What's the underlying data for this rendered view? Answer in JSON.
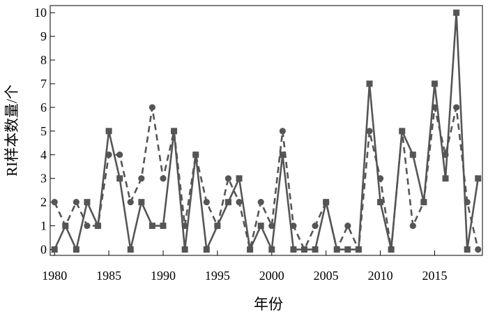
{
  "chart_data": {
    "type": "line",
    "xlabel": "年份",
    "ylabel": "RI样本数量/个",
    "xlim": [
      1979.6,
      2019.4
    ],
    "ylim": [
      -0.25,
      10.3
    ],
    "x_ticks": [
      1980,
      1985,
      1990,
      1995,
      2000,
      2005,
      2010,
      2015
    ],
    "y_ticks": [
      0,
      1,
      2,
      3,
      4,
      5,
      6,
      7,
      8,
      9,
      10
    ],
    "grid": false,
    "legend": "none",
    "x": [
      1980,
      1981,
      1982,
      1983,
      1984,
      1985,
      1986,
      1987,
      1988,
      1989,
      1990,
      1991,
      1992,
      1993,
      1994,
      1995,
      1996,
      1997,
      1998,
      1999,
      2000,
      2001,
      2002,
      2003,
      2004,
      2005,
      2006,
      2007,
      2008,
      2009,
      2010,
      2011,
      2012,
      2013,
      2014,
      2015,
      2016,
      2017,
      2018,
      2019
    ],
    "series": [
      {
        "style": "solid",
        "marker": "square",
        "color": "#555555",
        "values": [
          0,
          1,
          0,
          2,
          1,
          5,
          3,
          0,
          2,
          1,
          1,
          5,
          0,
          4,
          0,
          1,
          2,
          3,
          0,
          1,
          0,
          4,
          0,
          0,
          0,
          2,
          0,
          0,
          0,
          7,
          2,
          0,
          5,
          4,
          2,
          7,
          3,
          10,
          0,
          3
        ]
      },
      {
        "style": "dashed",
        "marker": "circle",
        "color": "#555555",
        "values": [
          2,
          1,
          2,
          1,
          1,
          4,
          4,
          2,
          3,
          6,
          3,
          5,
          1,
          4,
          2,
          1,
          3,
          2,
          0,
          2,
          1,
          5,
          1,
          0,
          1,
          2,
          0,
          1,
          0,
          5,
          3,
          0,
          5,
          1,
          2,
          6,
          4,
          6,
          2,
          0
        ]
      }
    ]
  }
}
